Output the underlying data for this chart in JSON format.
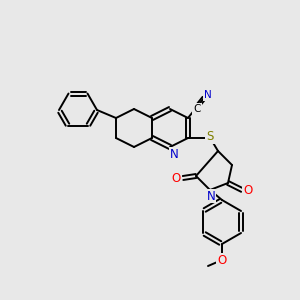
{
  "background_color": "#e8e8e8",
  "bond_color": "#000000",
  "atom_colors": {
    "N": "#0000cc",
    "O": "#ff0000",
    "S": "#808000",
    "C": "#000000"
  },
  "figsize": [
    3.0,
    3.0
  ],
  "dpi": 100
}
